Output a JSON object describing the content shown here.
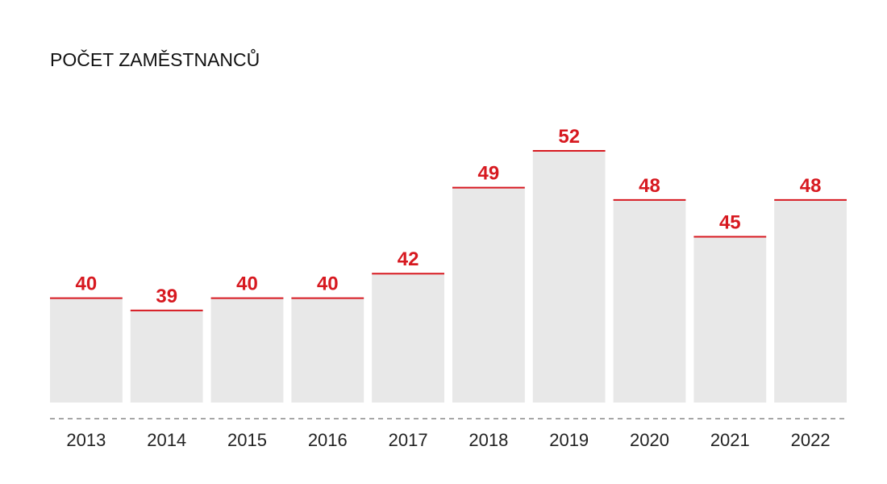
{
  "chart_data": {
    "type": "bar",
    "title": "POČET ZAMĚSTNANCŮ",
    "categories": [
      "2013",
      "2014",
      "2015",
      "2016",
      "2017",
      "2018",
      "2019",
      "2020",
      "2021",
      "2022"
    ],
    "values": [
      40,
      39,
      40,
      40,
      42,
      49,
      52,
      48,
      45,
      48
    ],
    "value_labels": [
      "40",
      "39",
      "40",
      "40",
      "42",
      "49",
      "52",
      "48",
      "45",
      "48"
    ],
    "xlabel": "",
    "ylabel": "",
    "ylim": [
      31.5,
      52
    ],
    "grid": false,
    "legend": "none"
  },
  "colors": {
    "bar_fill": "#e8e8e8",
    "accent": "#d71920",
    "baseline": "#888888",
    "text": "#111111"
  }
}
